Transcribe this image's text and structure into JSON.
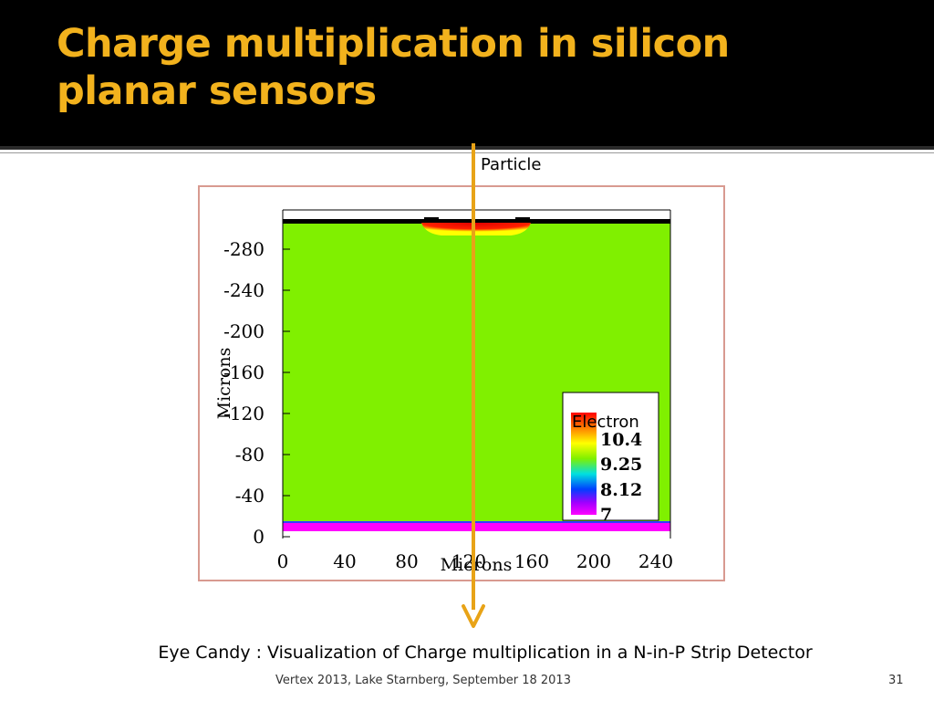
{
  "slide": {
    "title": "Charge multiplication in silicon planar sensors",
    "particle_label": "Particle",
    "caption": "Eye Candy : Visualization of Charge multiplication in a N-in-P Strip Detector",
    "footer": "Vertex 2013, Lake Starnberg, September 18 2013",
    "page_number": "31"
  },
  "colors": {
    "header_bg": "#000000",
    "title": "#f2b21d",
    "arrow": "#e8a317",
    "bulk": "#80f000",
    "backplane": "#ff00ff"
  },
  "chart_data": {
    "type": "heatmap",
    "xlabel": "Microns",
    "ylabel": "Microns",
    "x_ticks": [
      "0",
      "40",
      "80",
      "120",
      "160",
      "200",
      "240"
    ],
    "y_ticks": [
      "-280",
      "-240",
      "-200",
      "-160",
      "-120",
      "-80",
      "-40",
      "0"
    ],
    "xlim": [
      0,
      248
    ],
    "ylim": [
      0,
      300
    ],
    "colorbar": {
      "title": "Electron",
      "labels": [
        "10.4",
        "9.25",
        "8.12",
        "7"
      ]
    },
    "grid": false,
    "legend_position": "bottom-right"
  }
}
